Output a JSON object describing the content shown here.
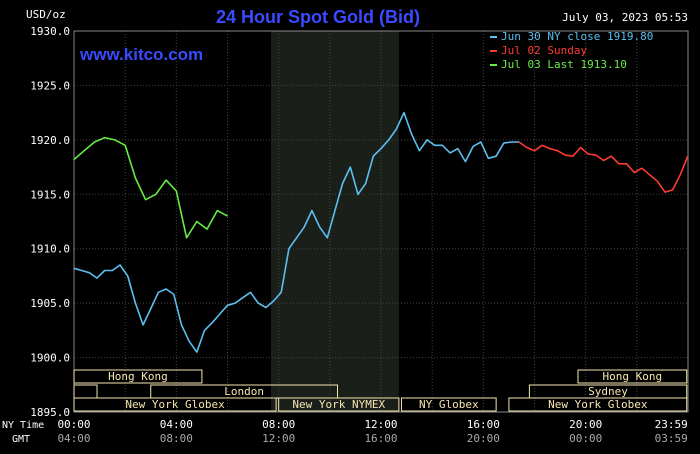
{
  "header": {
    "units": "USD/oz",
    "title": "24 Hour Spot Gold (Bid)",
    "date": "July 03, 2023 05:53",
    "watermark": "www.kitco.com"
  },
  "colors": {
    "background": "#000000",
    "plot_bg": "#000000",
    "grid": "#444444",
    "title": "#3a4bff",
    "watermark": "#3a4bff",
    "text": "#ffffff",
    "session_fill": "#f5e6b0",
    "session_text": "#000000",
    "shade": "#1a1f1a"
  },
  "legend": [
    {
      "label": "Jun 30 NY close 1919.80",
      "color": "#5bc0f0"
    },
    {
      "label": "Jul 02 Sunday",
      "color": "#ff3b30"
    },
    {
      "label": "Jul 03 Last 1913.10",
      "color": "#66ee44"
    }
  ],
  "time_axis": {
    "row1_label": "NY Time",
    "row2_label": "GMT",
    "ny": [
      "00:00",
      "04:00",
      "08:00",
      "12:00",
      "16:00",
      "20:00",
      "23:59"
    ],
    "gmt": [
      "04:00",
      "08:00",
      "12:00",
      "16:00",
      "20:00",
      "00:00",
      "03:59"
    ]
  },
  "sessions": [
    {
      "label": "Hong Kong",
      "row": 0,
      "start": 0.0,
      "end": 5.0
    },
    {
      "label": "",
      "row": 1,
      "start": 0.0,
      "end": 0.9
    },
    {
      "label": "London",
      "row": 1,
      "start": 3.0,
      "end": 10.3
    },
    {
      "label": "New York Globex",
      "row": 2,
      "start": 0.0,
      "end": 7.9
    },
    {
      "label": "New York NYMEX",
      "row": 2,
      "start": 8.0,
      "end": 12.7
    },
    {
      "label": "NY Globex",
      "row": 2,
      "start": 12.8,
      "end": 16.5
    },
    {
      "label": "Hong Kong",
      "row": 0,
      "start": 19.7,
      "end": 23.95
    },
    {
      "label": "Sydney",
      "row": 1,
      "start": 17.8,
      "end": 23.95
    },
    {
      "label": "New York Globex",
      "row": 2,
      "start": 17.0,
      "end": 23.95
    }
  ],
  "chart_data": {
    "type": "line",
    "title": "24 Hour Spot Gold (Bid)",
    "ylabel": "USD/oz",
    "ylim": [
      1895,
      1930
    ],
    "xlim": [
      0,
      24
    ],
    "y_ticks": [
      "1930.0",
      "1925.0",
      "1920.0",
      "1915.0",
      "1910.0",
      "1905.0",
      "1900.0",
      "1895.0"
    ],
    "shaded_region": [
      7.7,
      12.7
    ],
    "grid": true,
    "legend_position": "top-right",
    "series": [
      {
        "name": "Jun 30 NY close 1919.80",
        "color": "#5bc0f0",
        "x": [
          0,
          0.3,
          0.6,
          0.9,
          1.2,
          1.5,
          1.8,
          2.1,
          2.4,
          2.7,
          3.0,
          3.3,
          3.6,
          3.9,
          4.2,
          4.5,
          4.8,
          5.1,
          5.4,
          5.7,
          6.0,
          6.3,
          6.6,
          6.9,
          7.2,
          7.5,
          7.8,
          8.1,
          8.4,
          8.7,
          9.0,
          9.3,
          9.6,
          9.9,
          10.2,
          10.5,
          10.8,
          11.1,
          11.4,
          11.7,
          12.0,
          12.3,
          12.6,
          12.9,
          13.2,
          13.5,
          13.8,
          14.1,
          14.4,
          14.7,
          15.0,
          15.3,
          15.6,
          15.9,
          16.2,
          16.5,
          16.8,
          17.1,
          17.4
        ],
        "y": [
          1908.2,
          1908.0,
          1907.8,
          1907.3,
          1908.0,
          1908.0,
          1908.5,
          1907.5,
          1905.0,
          1903.0,
          1904.5,
          1906.0,
          1906.3,
          1905.8,
          1903.0,
          1901.5,
          1900.5,
          1902.5,
          1903.2,
          1904.0,
          1904.8,
          1905.0,
          1905.5,
          1906.0,
          1905.0,
          1904.6,
          1905.2,
          1906.0,
          1910.0,
          1911.0,
          1912.0,
          1913.5,
          1912.0,
          1911.0,
          1913.5,
          1916.0,
          1917.5,
          1915.0,
          1916.0,
          1918.5,
          1919.2,
          1920.0,
          1921.0,
          1922.5,
          1920.5,
          1919.0,
          1920.0,
          1919.5,
          1919.5,
          1918.8,
          1919.2,
          1918.0,
          1919.4,
          1919.8,
          1918.3,
          1918.5,
          1919.7,
          1919.8,
          1919.8
        ]
      },
      {
        "name": "Jul 02 Sunday",
        "color": "#ff3b30",
        "x": [
          17.4,
          17.7,
          18.0,
          18.3,
          18.6,
          18.9,
          19.2,
          19.5,
          19.8,
          20.1,
          20.4,
          20.7,
          21.0,
          21.3,
          21.6,
          21.9,
          22.2,
          22.5,
          22.8,
          23.1,
          23.4,
          23.7,
          23.99
        ],
        "y": [
          1919.8,
          1919.3,
          1919.0,
          1919.5,
          1919.2,
          1919.0,
          1918.6,
          1918.5,
          1919.3,
          1918.7,
          1918.6,
          1918.1,
          1918.5,
          1917.8,
          1917.8,
          1917.0,
          1917.4,
          1916.8,
          1916.2,
          1915.2,
          1915.4,
          1916.8,
          1918.5
        ]
      },
      {
        "name": "Jul 03 Last 1913.10",
        "color": "#66ee44",
        "x": [
          0,
          0.4,
          0.8,
          1.2,
          1.6,
          2.0,
          2.4,
          2.8,
          3.2,
          3.6,
          4.0,
          4.4,
          4.8,
          5.2,
          5.6,
          6.0
        ],
        "y": [
          1918.2,
          1919.0,
          1919.8,
          1920.2,
          1920.0,
          1919.5,
          1916.5,
          1914.5,
          1915.0,
          1916.3,
          1915.3,
          1911.0,
          1912.5,
          1911.8,
          1913.5,
          1913.0
        ]
      }
    ]
  }
}
